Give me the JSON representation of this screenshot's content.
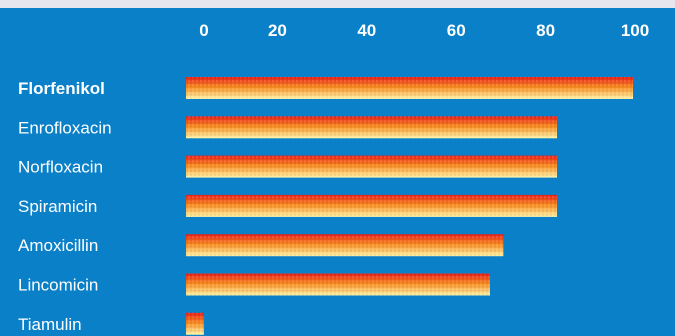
{
  "chart_data": {
    "type": "bar",
    "orientation": "horizontal",
    "categories": [
      "Florfenikol",
      "Enrofloxacin",
      "Norfloxacin",
      "Spiramicin",
      "Amoxicillin",
      "Lincomicin",
      "Tiamulin"
    ],
    "values": [
      100,
      83,
      83,
      83,
      71,
      68,
      4
    ],
    "highlighted_category": "Florfenikol",
    "x_ticks": [
      "0",
      "20",
      "40",
      "60",
      "80",
      "100"
    ],
    "xlim": [
      0,
      100
    ],
    "grid": false,
    "tick_position": "top"
  },
  "colors": {
    "background": "#0a80c8",
    "text": "#ffffff",
    "bar_top": "#e8201a",
    "bar_mid": "#f88a1e",
    "bar_bottom": "#fff4a8"
  }
}
